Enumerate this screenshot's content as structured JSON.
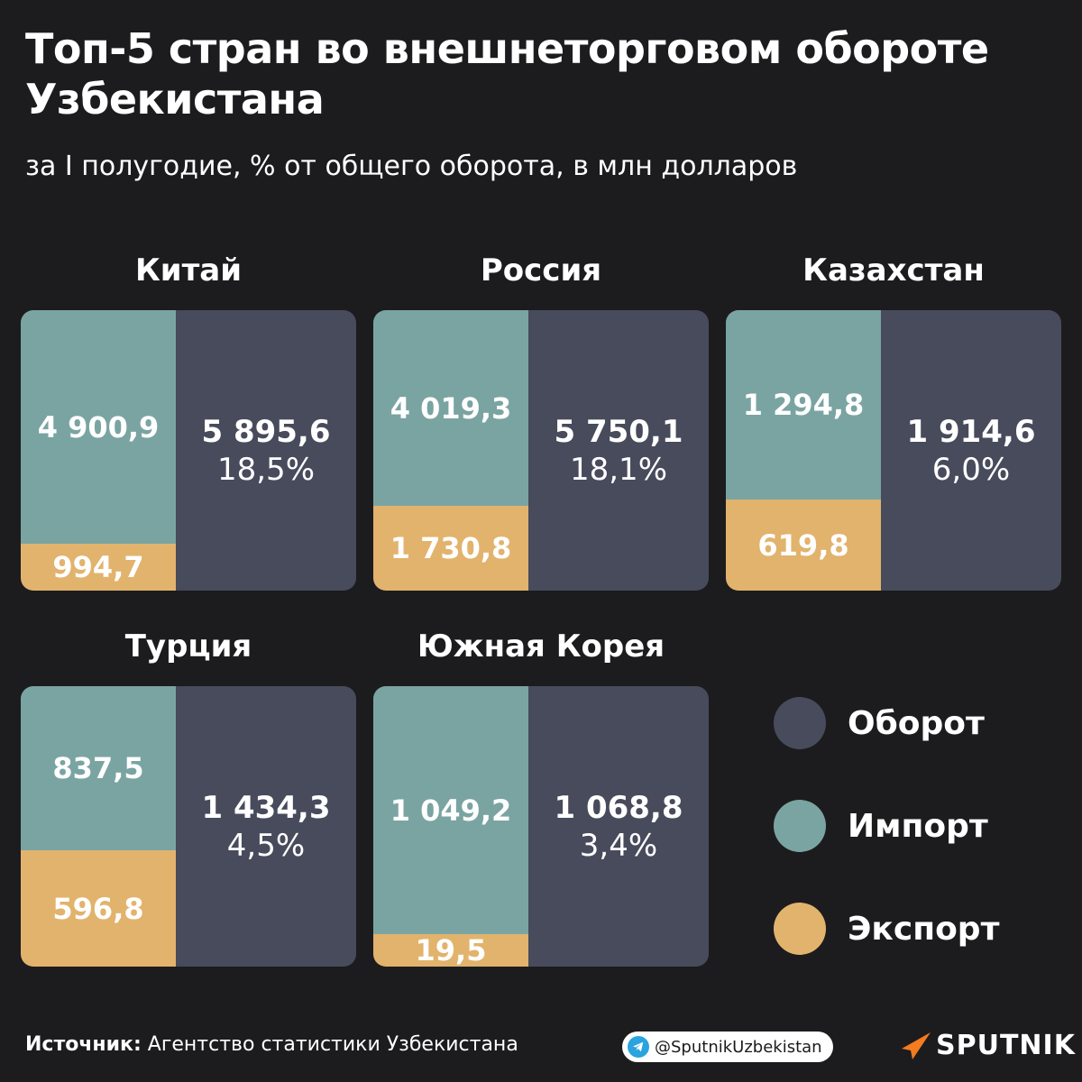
{
  "title": "Топ-5 стран во внешнеторговом обороте Узбекистана",
  "subtitle": "за I полугодие, % от общего оборота, в млн долларов",
  "colors": {
    "background": "#1c1c1e",
    "turnover": "#474b5c",
    "import": "#7aa4a2",
    "export": "#e2b36d"
  },
  "legend": {
    "turnover": "Оборот",
    "import": "Импорт",
    "export": "Экспорт"
  },
  "footer": {
    "source_label": "Источник:",
    "source_text": "Агентство статистики Узбекистана",
    "telegram_handle": "@SputnikUzbekistan",
    "brand": "SPUTNIK"
  },
  "chart_data": {
    "type": "bar",
    "unit": "млн долларов",
    "countries": [
      {
        "name": "Китай",
        "import": 4900.9,
        "import_label": "4 900,9",
        "export": 994.7,
        "export_label": "994,7",
        "turnover": 5895.6,
        "turnover_label": "5 895,6",
        "share_label": "18,5%"
      },
      {
        "name": "Россия",
        "import": 4019.3,
        "import_label": "4 019,3",
        "export": 1730.8,
        "export_label": "1 730,8",
        "turnover": 5750.1,
        "turnover_label": "5 750,1",
        "share_label": "18,1%"
      },
      {
        "name": "Казахстан",
        "import": 1294.8,
        "import_label": "1 294,8",
        "export": 619.8,
        "export_label": "619,8",
        "turnover": 1914.6,
        "turnover_label": "1 914,6",
        "share_label": "6,0%"
      },
      {
        "name": "Турция",
        "import": 837.5,
        "import_label": "837,5",
        "export": 596.8,
        "export_label": "596,8",
        "turnover": 1434.3,
        "turnover_label": "1 434,3",
        "share_label": "4,5%"
      },
      {
        "name": "Южная Корея",
        "import": 1049.2,
        "import_label": "1 049,2",
        "export": 19.5,
        "export_label": "19,5",
        "turnover": 1068.8,
        "turnover_label": "1 068,8",
        "share_label": "3,4%"
      }
    ]
  }
}
